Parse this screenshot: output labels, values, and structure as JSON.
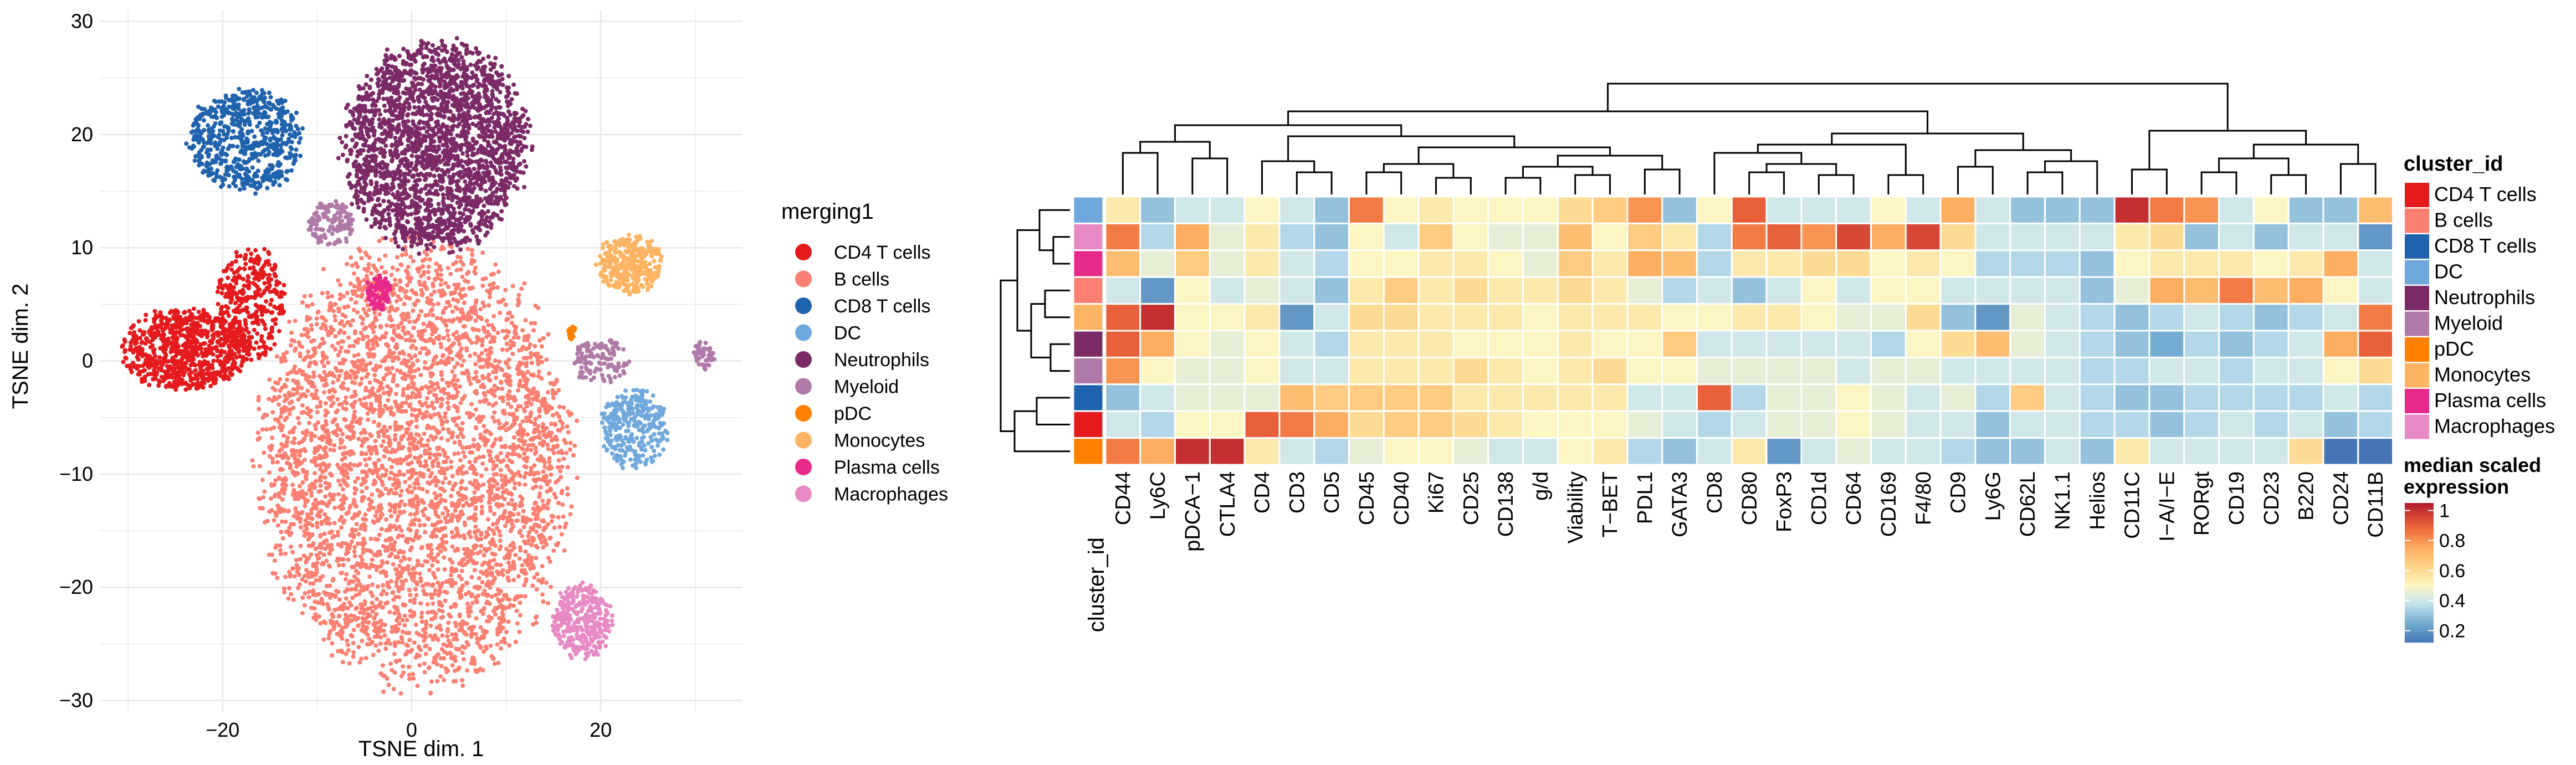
{
  "chart_data": [
    {
      "type": "scatter",
      "xlabel": "TSNE dim. 1",
      "ylabel": "TSNE dim. 2",
      "xlim": [
        -33,
        35
      ],
      "ylim": [
        -31,
        31
      ],
      "x_ticks": [
        -20,
        0,
        20
      ],
      "y_ticks": [
        -30,
        -20,
        -10,
        0,
        10,
        20,
        30
      ],
      "grid": true,
      "legend_title": "merging1",
      "legend_position": "right",
      "legend": [
        {
          "label": "CD4 T cells",
          "color": "#e41a1c"
        },
        {
          "label": "B cells",
          "color": "#fb8072"
        },
        {
          "label": "CD8 T cells",
          "color": "#1f62ad"
        },
        {
          "label": "DC",
          "color": "#6fa8dc"
        },
        {
          "label": "Neutrophils",
          "color": "#7b2a66"
        },
        {
          "label": "Myeloid",
          "color": "#b07aa8"
        },
        {
          "label": "pDC",
          "color": "#ff7f00"
        },
        {
          "label": "Monocytes",
          "color": "#fdb462"
        },
        {
          "label": "Plasma cells",
          "color": "#e7298a"
        },
        {
          "label": "Macrophages",
          "color": "#e78ac3"
        }
      ],
      "clusters": [
        {
          "name": "B cells",
          "color": "#fb8072",
          "cx": 0.5,
          "cy": -9,
          "rx": 16,
          "ry": 19,
          "n": 4200
        },
        {
          "name": "Neutrophils",
          "color": "#7b2a66",
          "cx": 2.5,
          "cy": 19,
          "rx": 9.5,
          "ry": 9,
          "n": 2400
        },
        {
          "name": "CD8 T cells",
          "color": "#1f62ad",
          "cx": -17.5,
          "cy": 19.5,
          "rx": 6,
          "ry": 4.5,
          "n": 650
        },
        {
          "name": "CD4 T cells",
          "color": "#e41a1c",
          "cx": -24,
          "cy": 1,
          "rx": 6.5,
          "ry": 3.5,
          "n": 800
        },
        {
          "name": "CD4 T cells",
          "color": "#e41a1c",
          "cx": -17,
          "cy": 5,
          "rx": 3.5,
          "ry": 5,
          "n": 350
        },
        {
          "name": "Myeloid",
          "color": "#b07aa8",
          "cx": -8.5,
          "cy": 12,
          "rx": 2.5,
          "ry": 2,
          "n": 140
        },
        {
          "name": "Myeloid",
          "color": "#b07aa8",
          "cx": 20,
          "cy": 0,
          "rx": 3,
          "ry": 2,
          "n": 120
        },
        {
          "name": "Myeloid",
          "color": "#b07aa8",
          "cx": 31,
          "cy": 0.5,
          "rx": 1.2,
          "ry": 1.2,
          "n": 50
        },
        {
          "name": "Plasma cells",
          "color": "#e7298a",
          "cx": -3.5,
          "cy": 6,
          "rx": 1.3,
          "ry": 1.5,
          "n": 90
        },
        {
          "name": "Monocytes",
          "color": "#fdb462",
          "cx": 23,
          "cy": 8.5,
          "rx": 3.5,
          "ry": 2.5,
          "n": 330
        },
        {
          "name": "DC",
          "color": "#6fa8dc",
          "cx": 23.5,
          "cy": -6,
          "rx": 3.5,
          "ry": 3.5,
          "n": 300
        },
        {
          "name": "pDC",
          "color": "#ff7f00",
          "cx": 17,
          "cy": 2.5,
          "rx": 0.5,
          "ry": 0.6,
          "n": 25
        },
        {
          "name": "Macrophages",
          "color": "#e78ac3",
          "cx": 18,
          "cy": -23,
          "rx": 3,
          "ry": 3.2,
          "n": 320
        }
      ]
    },
    {
      "type": "heatmap",
      "columns": [
        "CD44",
        "Ly6C",
        "pDCA−1",
        "CTLA4",
        "CD4",
        "CD3",
        "CD5",
        "CD45",
        "CD40",
        "Ki67",
        "CD25",
        "CD138",
        "g/d",
        "Viability",
        "T−BET",
        "PDL1",
        "GATA3",
        "CD8",
        "CD80",
        "FoxP3",
        "CD1d",
        "CD64",
        "CD169",
        "F4/80",
        "CD9",
        "Ly6G",
        "CD62L",
        "NK1.1",
        "Helios",
        "CD11C",
        "I−A/I−E",
        "RORgt",
        "CD19",
        "CD23",
        "B220",
        "CD24",
        "CD11B"
      ],
      "annotation_label": "cluster_id",
      "row_clusters": [
        "DC",
        "Macrophages",
        "Plasma cells",
        "B cells",
        "Monocytes",
        "Neutrophils",
        "Myeloid",
        "CD8 T cells",
        "CD4 T cells",
        "pDC"
      ],
      "values": [
        [
          0.55,
          0.3,
          0.4,
          0.4,
          0.5,
          0.4,
          0.3,
          0.85,
          0.5,
          0.55,
          0.5,
          0.5,
          0.5,
          0.6,
          0.65,
          0.8,
          0.3,
          0.5,
          0.9,
          0.4,
          0.4,
          0.4,
          0.5,
          0.4,
          0.75,
          0.4,
          0.3,
          0.3,
          0.3,
          1.0,
          0.85,
          0.8,
          0.4,
          0.5,
          0.3,
          0.3,
          0.7
        ],
        [
          0.85,
          0.35,
          0.75,
          0.45,
          0.55,
          0.35,
          0.3,
          0.5,
          0.4,
          0.65,
          0.5,
          0.45,
          0.45,
          0.7,
          0.5,
          0.65,
          0.55,
          0.35,
          0.85,
          0.9,
          0.8,
          0.95,
          0.75,
          0.95,
          0.6,
          0.4,
          0.4,
          0.4,
          0.4,
          0.55,
          0.6,
          0.3,
          0.4,
          0.3,
          0.4,
          0.4,
          0.2
        ],
        [
          0.7,
          0.45,
          0.65,
          0.45,
          0.55,
          0.4,
          0.35,
          0.5,
          0.5,
          0.55,
          0.55,
          0.5,
          0.45,
          0.65,
          0.55,
          0.75,
          0.7,
          0.35,
          0.55,
          0.55,
          0.6,
          0.6,
          0.5,
          0.55,
          0.5,
          0.35,
          0.35,
          0.35,
          0.3,
          0.5,
          0.55,
          0.55,
          0.55,
          0.5,
          0.55,
          0.75,
          0.4
        ],
        [
          0.4,
          0.2,
          0.5,
          0.4,
          0.45,
          0.4,
          0.3,
          0.55,
          0.65,
          0.55,
          0.6,
          0.55,
          0.55,
          0.6,
          0.55,
          0.45,
          0.35,
          0.4,
          0.3,
          0.4,
          0.5,
          0.4,
          0.5,
          0.5,
          0.4,
          0.4,
          0.4,
          0.4,
          0.3,
          0.45,
          0.75,
          0.7,
          0.85,
          0.7,
          0.75,
          0.5,
          0.4
        ],
        [
          0.9,
          1.0,
          0.5,
          0.5,
          0.55,
          0.2,
          0.4,
          0.6,
          0.6,
          0.55,
          0.55,
          0.55,
          0.5,
          0.55,
          0.55,
          0.55,
          0.5,
          0.5,
          0.55,
          0.55,
          0.5,
          0.45,
          0.45,
          0.6,
          0.3,
          0.2,
          0.45,
          0.4,
          0.35,
          0.3,
          0.35,
          0.4,
          0.35,
          0.3,
          0.35,
          0.4,
          0.85
        ],
        [
          0.9,
          0.75,
          0.5,
          0.45,
          0.5,
          0.4,
          0.35,
          0.55,
          0.55,
          0.55,
          0.5,
          0.5,
          0.5,
          0.55,
          0.5,
          0.5,
          0.65,
          0.4,
          0.4,
          0.4,
          0.4,
          0.4,
          0.35,
          0.5,
          0.6,
          0.7,
          0.45,
          0.4,
          0.35,
          0.3,
          0.25,
          0.35,
          0.3,
          0.35,
          0.4,
          0.75,
          0.9
        ],
        [
          0.8,
          0.5,
          0.45,
          0.45,
          0.5,
          0.4,
          0.4,
          0.55,
          0.55,
          0.55,
          0.6,
          0.55,
          0.5,
          0.55,
          0.6,
          0.5,
          0.5,
          0.45,
          0.45,
          0.45,
          0.45,
          0.4,
          0.45,
          0.45,
          0.4,
          0.4,
          0.4,
          0.4,
          0.35,
          0.35,
          0.4,
          0.4,
          0.35,
          0.4,
          0.4,
          0.5,
          0.6
        ],
        [
          0.3,
          0.4,
          0.45,
          0.45,
          0.45,
          0.7,
          0.65,
          0.65,
          0.65,
          0.65,
          0.55,
          0.55,
          0.55,
          0.55,
          0.55,
          0.4,
          0.4,
          0.9,
          0.35,
          0.45,
          0.45,
          0.5,
          0.45,
          0.4,
          0.45,
          0.35,
          0.65,
          0.4,
          0.35,
          0.3,
          0.3,
          0.35,
          0.35,
          0.35,
          0.35,
          0.4,
          0.35
        ],
        [
          0.4,
          0.35,
          0.5,
          0.5,
          0.9,
          0.85,
          0.75,
          0.6,
          0.65,
          0.65,
          0.6,
          0.55,
          0.5,
          0.5,
          0.5,
          0.45,
          0.4,
          0.35,
          0.4,
          0.45,
          0.45,
          0.5,
          0.45,
          0.4,
          0.4,
          0.3,
          0.4,
          0.4,
          0.35,
          0.35,
          0.3,
          0.35,
          0.4,
          0.35,
          0.4,
          0.3,
          0.35
        ],
        [
          0.85,
          0.75,
          1.0,
          1.0,
          0.55,
          0.4,
          0.35,
          0.45,
          0.5,
          0.5,
          0.45,
          0.4,
          0.4,
          0.5,
          0.55,
          0.35,
          0.3,
          0.4,
          0.55,
          0.2,
          0.4,
          0.45,
          0.4,
          0.4,
          0.35,
          0.3,
          0.3,
          0.4,
          0.3,
          0.55,
          0.4,
          0.4,
          0.4,
          0.4,
          0.6,
          0.1,
          0.1
        ]
      ],
      "legend_title": "cluster_id",
      "legend": [
        {
          "label": "CD4 T cells",
          "color": "#e41a1c"
        },
        {
          "label": "B cells",
          "color": "#fb8072"
        },
        {
          "label": "CD8 T cells",
          "color": "#1f62ad"
        },
        {
          "label": "DC",
          "color": "#6fa8dc"
        },
        {
          "label": "Neutrophils",
          "color": "#7b2a66"
        },
        {
          "label": "Myeloid",
          "color": "#b07aa8"
        },
        {
          "label": "pDC",
          "color": "#ff7f00"
        },
        {
          "label": "Monocytes",
          "color": "#fdb462"
        },
        {
          "label": "Plasma cells",
          "color": "#e7298a"
        },
        {
          "label": "Macrophages",
          "color": "#e78ac3"
        }
      ],
      "colorbar_title_line1": "median scaled",
      "colorbar_title_line2": "expression",
      "colorbar_ticks": [
        "1",
        "0.8",
        "0.6",
        "0.4",
        "0.2"
      ],
      "colorbar_tick_values": [
        1,
        0.8,
        0.6,
        0.4,
        0.2
      ],
      "colorbar_range": [
        0.12,
        1.05
      ],
      "color_scale": [
        {
          "v": 0.12,
          "c": "#4575b4"
        },
        {
          "v": 0.25,
          "c": "#74add1"
        },
        {
          "v": 0.38,
          "c": "#c6e4ef"
        },
        {
          "v": 0.5,
          "c": "#fdf6c3"
        },
        {
          "v": 0.62,
          "c": "#fdd58a"
        },
        {
          "v": 0.75,
          "c": "#fdae61"
        },
        {
          "v": 0.88,
          "c": "#ef6a3c"
        },
        {
          "v": 1.05,
          "c": "#b2182b"
        }
      ]
    }
  ]
}
